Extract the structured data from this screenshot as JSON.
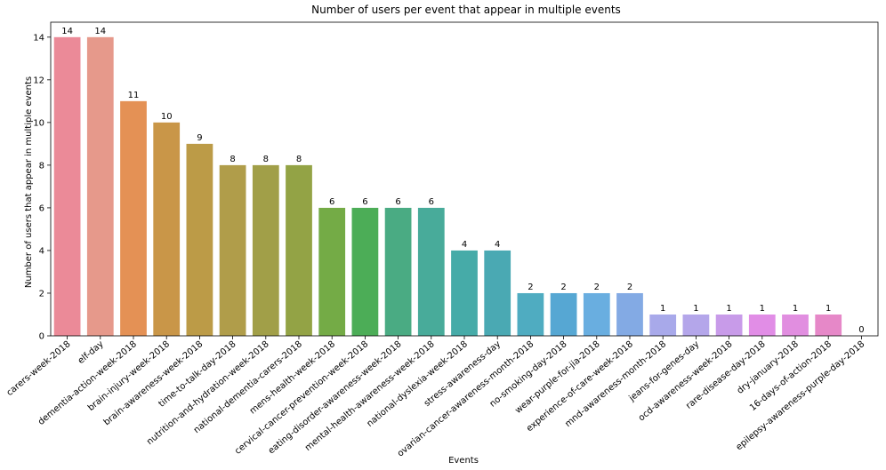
{
  "chart_data": {
    "type": "bar",
    "title": "Number of users per event that appear in multiple events",
    "xlabel": "Events",
    "ylabel": "Number of users that appear in multiple events",
    "ylim": [
      0,
      14.7
    ],
    "yticks": [
      0,
      2,
      4,
      6,
      8,
      10,
      12,
      14
    ],
    "categories": [
      "carers-week-2018",
      "elf-day",
      "dementia-action-week-2018",
      "brain-injury-week-2018",
      "brain-awareness-week-2018",
      "time-to-talk-day-2018",
      "nutrition-and-hydration-week-2018",
      "national-dementia-carers-2018",
      "mens-health-week-2018",
      "cervical-cancer-prevention-week-2018",
      "eating-disorder-awareness-week-2018",
      "mental-health-awareness-week-2018",
      "national-dyslexia-week-2018",
      "stress-awareness-day",
      "ovarian-cancer-awareness-month-2018",
      "no-smoking-day-2018",
      "wear-purple-for-jia-2018",
      "experience-of-care-week-2018",
      "mnd-awareness-month-2018",
      "jeans-for-genes-day",
      "ocd-awareness-week-2018",
      "rare-disease-day-2018",
      "dry-january-2018",
      "16-days-of-action-2018",
      "epilepsy-awareness-purple-day-2018"
    ],
    "values": [
      14,
      14,
      11,
      10,
      9,
      8,
      8,
      8,
      6,
      6,
      6,
      6,
      4,
      4,
      2,
      2,
      2,
      2,
      1,
      1,
      1,
      1,
      1,
      1,
      0
    ],
    "value_labels": [
      "14",
      "14",
      "11",
      "10",
      "9",
      "8",
      "8",
      "8",
      "6",
      "6",
      "6",
      "6",
      "4",
      "4",
      "2",
      "2",
      "2",
      "2",
      "1",
      "1",
      "1",
      "1",
      "1",
      "1",
      "0"
    ],
    "colors": [
      "#eb8a98",
      "#e6998b",
      "#e49155",
      "#c99648",
      "#bc9b47",
      "#b09d4a",
      "#a19f48",
      "#93a345",
      "#74ab46",
      "#4cad57",
      "#4aab83",
      "#48ab9a",
      "#46aba8",
      "#4aa9b3",
      "#4facc1",
      "#56a7d3",
      "#69aee0",
      "#83aae4",
      "#a8a9ea",
      "#b4a6ea",
      "#c89be9",
      "#e18de6",
      "#e18ee0",
      "#e688c8",
      "#e88ab8"
    ],
    "grid": false,
    "legend": "none"
  }
}
